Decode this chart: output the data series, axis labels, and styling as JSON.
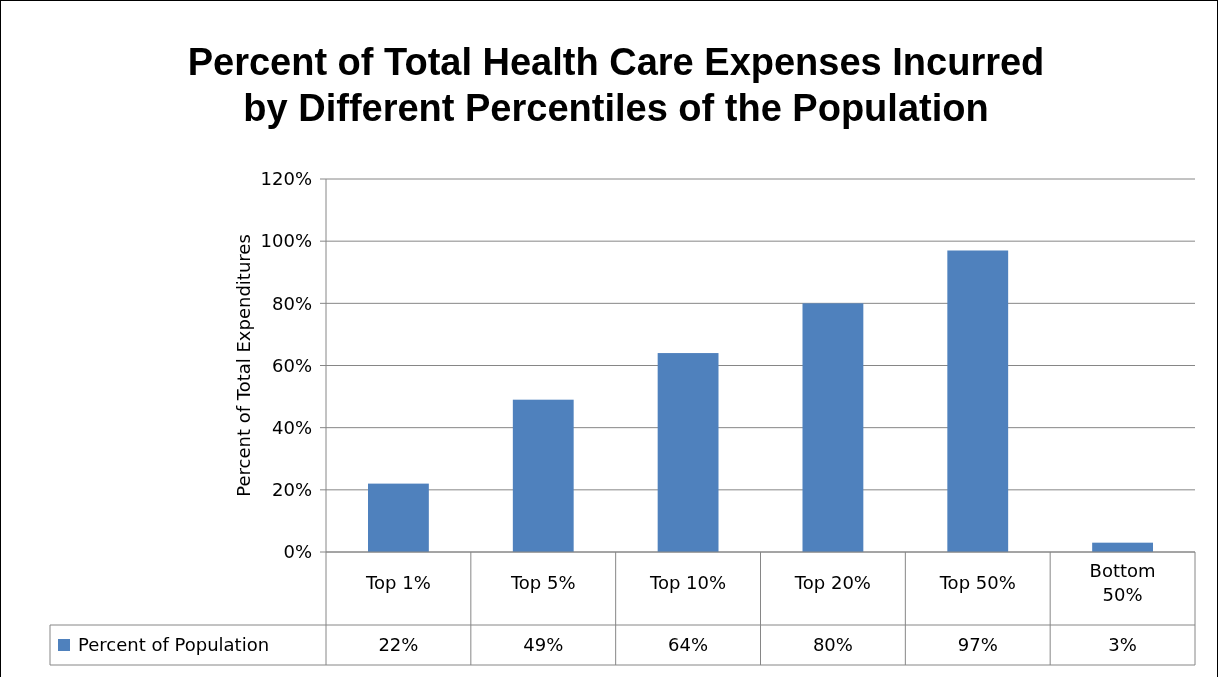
{
  "chart_data": {
    "type": "bar",
    "title": "Percent of Total Health Care Expenses Incurred by Different Percentiles of the Population",
    "ylabel": "Percent of Total Expenditures",
    "categories": [
      "Top 1%",
      "Top 5%",
      "Top 10%",
      "Top 20%",
      "Top 50%",
      "Bottom 50%"
    ],
    "series": [
      {
        "name": "Percent of Population",
        "color": "#4f81bd",
        "values": [
          22,
          49,
          64,
          80,
          97,
          3
        ],
        "value_labels": [
          "22%",
          "49%",
          "64%",
          "80%",
          "97%",
          "3%"
        ]
      }
    ],
    "ylim": [
      0,
      120
    ],
    "yticks": [
      {
        "value": 0,
        "label": "0%"
      },
      {
        "value": 20,
        "label": "20%"
      },
      {
        "value": 40,
        "label": "40%"
      },
      {
        "value": 60,
        "label": "60%"
      },
      {
        "value": 80,
        "label": "80%"
      },
      {
        "value": 100,
        "label": "100%"
      },
      {
        "value": 120,
        "label": "120%"
      }
    ],
    "grid": "y",
    "legend": "bottom"
  }
}
